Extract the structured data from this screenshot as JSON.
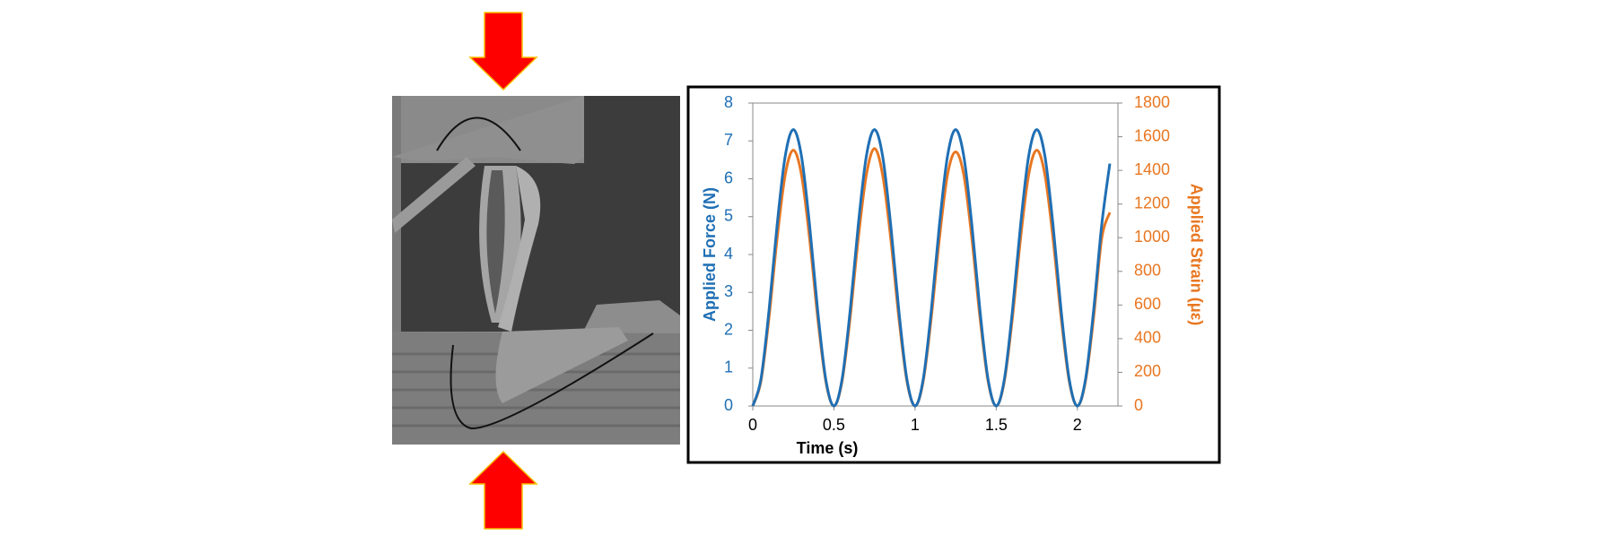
{
  "chart_data": {
    "type": "line",
    "x_label": "Time (s)",
    "y_label": "Applied Force (N)",
    "y2_label": "Applied Strain (με)",
    "x": [
      0,
      0.05,
      0.1,
      0.15,
      0.2,
      0.25,
      0.3,
      0.35,
      0.4,
      0.45,
      0.5,
      0.55,
      0.6,
      0.65,
      0.7,
      0.75,
      0.8,
      0.85,
      0.9,
      0.95,
      1,
      1.05,
      1.1,
      1.15,
      1.2,
      1.25,
      1.3,
      1.35,
      1.4,
      1.45,
      1.5,
      1.55,
      1.6,
      1.65,
      1.7,
      1.75,
      1.8,
      1.85,
      1.9,
      1.95,
      2,
      2.05,
      2.1,
      2.15,
      2.2
    ],
    "series": [
      {
        "name": "Applied Force",
        "color": "#1f6fb4",
        "values": [
          0,
          0.7,
          2.52,
          4.78,
          6.6,
          7.3,
          6.6,
          4.78,
          2.52,
          0.7,
          0,
          0.7,
          2.52,
          4.78,
          6.6,
          7.3,
          6.6,
          4.78,
          2.52,
          0.7,
          0,
          0.7,
          2.52,
          4.78,
          6.6,
          7.3,
          6.6,
          4.78,
          2.52,
          0.7,
          0,
          0.7,
          2.52,
          4.78,
          6.6,
          7.3,
          6.6,
          4.78,
          2.52,
          0.7,
          0,
          0.7,
          2.52,
          4.78,
          6.4
        ]
      },
      {
        "name": "Applied Strain",
        "color": "#e87722",
        "axis": "y2",
        "values": [
          0,
          146,
          525,
          995,
          1374,
          1520,
          1374,
          995,
          525,
          146,
          0,
          146,
          525,
          995,
          1374,
          1530,
          1374,
          995,
          525,
          146,
          0,
          146,
          525,
          995,
          1374,
          1510,
          1374,
          995,
          525,
          146,
          0,
          146,
          525,
          995,
          1374,
          1520,
          1374,
          995,
          525,
          146,
          0,
          146,
          525,
          995,
          1150
        ]
      }
    ],
    "xlim": [
      0,
      2.25
    ],
    "xticks": [
      0,
      0.5,
      1,
      1.5,
      2
    ],
    "ylim": [
      0,
      8
    ],
    "yticks": [
      0,
      1,
      2,
      3,
      4,
      5,
      6,
      7,
      8
    ],
    "y2lim": [
      0,
      1800
    ],
    "y2ticks": [
      0,
      200,
      400,
      600,
      800,
      1000,
      1200,
      1400,
      1600,
      1800
    ]
  }
}
